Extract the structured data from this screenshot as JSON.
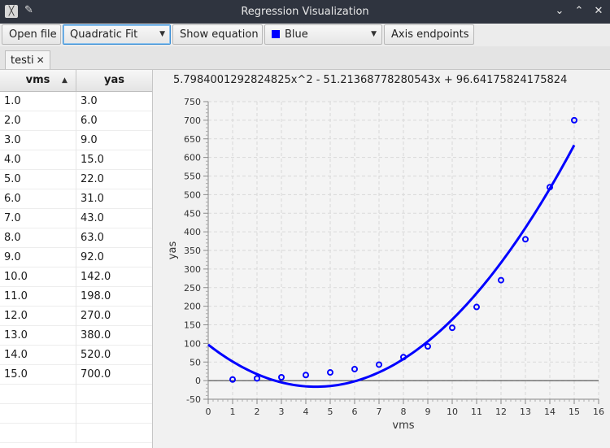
{
  "window": {
    "title": "Regression Visualization"
  },
  "toolbar": {
    "open_file": "Open file",
    "fit_type": "Quadratic Fit",
    "show_equation": "Show equation",
    "color": "Blue",
    "axis_endpoints": "Axis endpoints"
  },
  "tabs": [
    {
      "label": "testi"
    }
  ],
  "table": {
    "headers": [
      "vms",
      "yas"
    ],
    "rows": [
      [
        "1.0",
        "3.0"
      ],
      [
        "2.0",
        "6.0"
      ],
      [
        "3.0",
        "9.0"
      ],
      [
        "4.0",
        "15.0"
      ],
      [
        "5.0",
        "22.0"
      ],
      [
        "6.0",
        "31.0"
      ],
      [
        "7.0",
        "43.0"
      ],
      [
        "8.0",
        "63.0"
      ],
      [
        "9.0",
        "92.0"
      ],
      [
        "10.0",
        "142.0"
      ],
      [
        "11.0",
        "198.0"
      ],
      [
        "12.0",
        "270.0"
      ],
      [
        "13.0",
        "380.0"
      ],
      [
        "14.0",
        "520.0"
      ],
      [
        "15.0",
        "700.0"
      ]
    ]
  },
  "chart": {
    "equation": "5.7984001292824825x^2 - 51.21368778280543x + 96.64175824175824"
  },
  "chart_data": {
    "type": "scatter",
    "xlabel": "vms",
    "ylabel": "yas",
    "xlim": [
      0,
      16
    ],
    "ylim": [
      -50,
      750
    ],
    "xticks": [
      0,
      1,
      2,
      3,
      4,
      5,
      6,
      7,
      8,
      9,
      10,
      11,
      12,
      13,
      14,
      15,
      16
    ],
    "yticks": [
      -50,
      0,
      50,
      100,
      150,
      200,
      250,
      300,
      350,
      400,
      450,
      500,
      550,
      600,
      650,
      700,
      750
    ],
    "grid": true,
    "color": "#0000ff",
    "points": {
      "x": [
        1,
        2,
        3,
        4,
        5,
        6,
        7,
        8,
        9,
        10,
        11,
        12,
        13,
        14,
        15
      ],
      "y": [
        3,
        6,
        9,
        15,
        22,
        31,
        43,
        63,
        92,
        142,
        198,
        270,
        380,
        520,
        700
      ]
    },
    "fit": {
      "a": 5.7984001292824825,
      "b": -51.21368778280543,
      "c": 96.64175824175824
    }
  }
}
